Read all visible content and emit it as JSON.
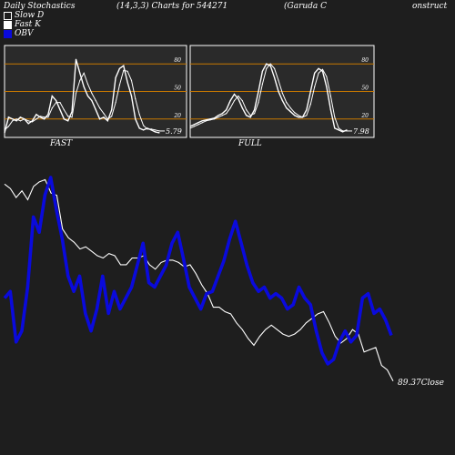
{
  "header": {
    "title": "Daily Stochastics",
    "params": "(14,3,3) Charts for 544271",
    "company": "(Garuda C",
    "company_cont": "onstruct"
  },
  "legend": [
    {
      "label": "Slow  D",
      "color": "#1e1e1e"
    },
    {
      "label": "Fast K",
      "color": "#ffffff"
    },
    {
      "label": "OBV",
      "color": "#0a0adc"
    }
  ],
  "panels": {
    "fast_label": "FAST",
    "full_label": "FULL",
    "fast_value": "5.79",
    "full_value": "7.98"
  },
  "price_label": "89.37Close",
  "colors": {
    "background": "#1e1e1e",
    "line": "#ffffff",
    "obv": "#0a0adc",
    "level": "#c87800"
  },
  "chart_data": [
    {
      "type": "line",
      "title": "FAST",
      "ylim": [
        0,
        100
      ],
      "yticks": [
        20,
        50,
        80
      ],
      "reference_lines": [
        20,
        50,
        80
      ],
      "series": [
        {
          "values": [
            5,
            22,
            20,
            18,
            22,
            20,
            15,
            18,
            25,
            22,
            20,
            25,
            45,
            40,
            30,
            20,
            18,
            28,
            85,
            70,
            55,
            45,
            40,
            30,
            20,
            22,
            18,
            30,
            65,
            75,
            78,
            60,
            45,
            20,
            10,
            8,
            10,
            8,
            6,
            5
          ]
        },
        {
          "values": [
            8,
            12,
            18,
            20,
            18,
            20,
            18,
            17,
            20,
            23,
            22,
            22,
            32,
            38,
            38,
            30,
            23,
            22,
            48,
            62,
            70,
            58,
            48,
            40,
            32,
            26,
            20,
            23,
            38,
            57,
            73,
            72,
            62,
            42,
            25,
            13,
            9,
            9,
            8,
            7
          ]
        }
      ]
    },
    {
      "type": "line",
      "title": "FULL",
      "ylim": [
        0,
        100
      ],
      "yticks": [
        20,
        50,
        80
      ],
      "reference_lines": [
        20,
        50,
        80
      ],
      "series": [
        {
          "values": [
            12,
            14,
            16,
            18,
            19,
            20,
            21,
            24,
            26,
            30,
            40,
            47,
            42,
            32,
            24,
            22,
            30,
            50,
            72,
            80,
            78,
            65,
            50,
            40,
            32,
            28,
            24,
            22,
            22,
            30,
            50,
            70,
            75,
            72,
            55,
            30,
            10,
            8,
            6,
            8
          ]
        },
        {
          "values": [
            10,
            12,
            14,
            16,
            18,
            19,
            20,
            22,
            24,
            26,
            32,
            40,
            45,
            40,
            30,
            24,
            26,
            38,
            58,
            75,
            80,
            75,
            62,
            48,
            38,
            32,
            27,
            24,
            22,
            24,
            36,
            55,
            70,
            74,
            66,
            45,
            22,
            10,
            7,
            7
          ]
        }
      ]
    },
    {
      "type": "line",
      "series": [
        {
          "name": "Close",
          "values": [
            95,
            93,
            89,
            92,
            88,
            94,
            96,
            97,
            91,
            90,
            75,
            71,
            69,
            66,
            67,
            65,
            63,
            62,
            64,
            63,
            59,
            59,
            62,
            62,
            63,
            59,
            57,
            60,
            61,
            61,
            60,
            58,
            59,
            55,
            50,
            46,
            40,
            40,
            38,
            37,
            33,
            30,
            26,
            23,
            27,
            30,
            32,
            30,
            28,
            27,
            28,
            30,
            33,
            35,
            37,
            38,
            33,
            27,
            24,
            26,
            30,
            28,
            20,
            21,
            22,
            14,
            12,
            7
          ]
        },
        {
          "name": "OBV",
          "values": [
            45,
            48,
            25,
            30,
            50,
            82,
            75,
            92,
            100,
            85,
            72,
            55,
            48,
            55,
            38,
            30,
            40,
            55,
            38,
            48,
            40,
            45,
            50,
            60,
            70,
            52,
            50,
            55,
            60,
            70,
            75,
            63,
            50,
            45,
            40,
            47,
            48,
            55,
            62,
            72,
            80,
            70,
            60,
            52,
            48,
            50,
            45,
            47,
            45,
            40,
            42,
            50,
            45,
            42,
            30,
            20,
            15,
            17,
            25,
            30,
            25,
            28,
            45,
            47,
            38,
            40,
            35,
            28
          ]
        }
      ]
    }
  ]
}
